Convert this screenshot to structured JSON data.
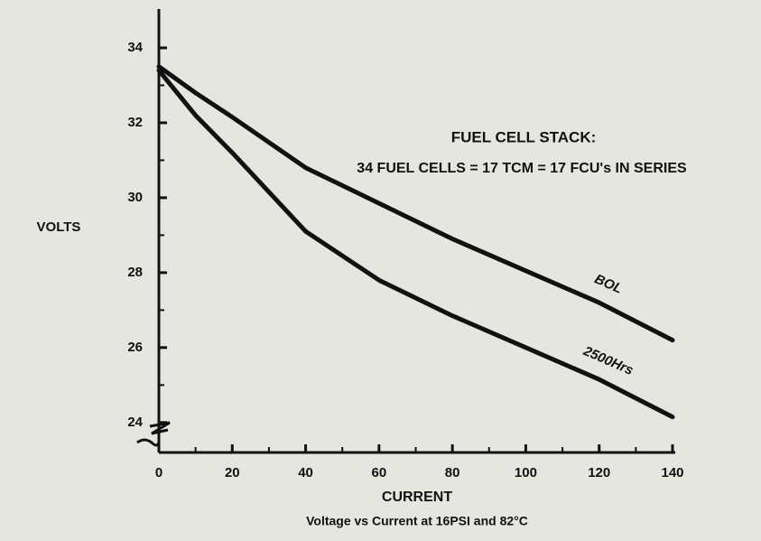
{
  "chart_data": {
    "type": "line",
    "title": "FUEL CELL STACK:",
    "subtitle": "34 FUEL CELLS = 17 TCM = 17 FCU's IN SERIES",
    "ylabel": "VOLTS",
    "xlabel": "CURRENT",
    "caption": "Voltage vs Current at 16PSI and 82°C",
    "x": [
      0,
      10,
      20,
      40,
      60,
      80,
      100,
      120,
      140
    ],
    "series": [
      {
        "name": "BOL",
        "color": "#111111",
        "values": [
          33.5,
          32.8,
          32.15,
          30.8,
          29.85,
          28.9,
          28.05,
          27.2,
          26.2
        ]
      },
      {
        "name": "2500Hrs",
        "color": "#111111",
        "values": [
          33.4,
          32.2,
          31.2,
          29.1,
          27.8,
          26.85,
          26.0,
          25.15,
          24.15
        ]
      }
    ],
    "xlim": [
      0,
      140
    ],
    "ylim": [
      23.2,
      35
    ],
    "xticks": [
      0,
      20,
      40,
      60,
      80,
      100,
      120,
      140
    ],
    "xminor": [
      10,
      30,
      50,
      70,
      90,
      110,
      130
    ],
    "yticks": [
      24,
      26,
      28,
      30,
      32,
      34
    ],
    "yminor": [
      25,
      27,
      29,
      31,
      33
    ]
  }
}
